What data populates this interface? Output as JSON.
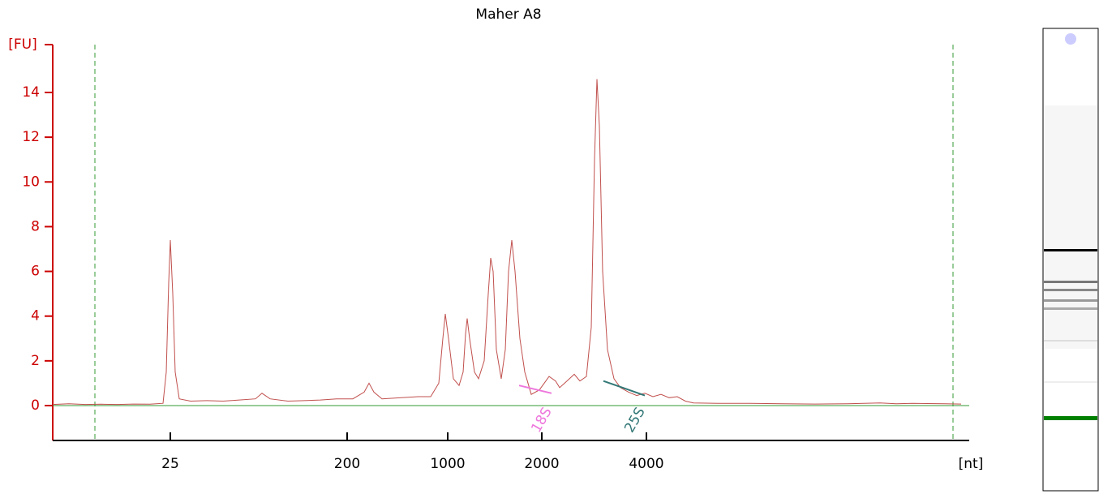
{
  "chart_data": {
    "type": "line",
    "title": "Maher A8",
    "ylabel": "[FU]",
    "xlabel": "[nt]",
    "xlim": [
      19,
      75.5
    ],
    "ylim": [
      -1.56,
      16.14
    ],
    "xticks": [
      {
        "value": 26.25,
        "label": "25"
      },
      {
        "value": 37.15,
        "label": "200"
      },
      {
        "value": 43.35,
        "label": "1000"
      },
      {
        "value": 49.15,
        "label": "2000"
      },
      {
        "value": 55.6,
        "label": "4000"
      }
    ],
    "yticks": [
      0,
      2,
      4,
      6,
      8,
      10,
      12,
      14
    ],
    "markers": [
      21.6,
      74.5
    ],
    "annotations": [
      {
        "text": "18S",
        "color": "#ee77dd",
        "x": [
          47.75,
          49.75
        ],
        "y": [
          0.9,
          0.55
        ]
      },
      {
        "text": "25S",
        "color": "#337777",
        "x": [
          52.95,
          55.5
        ],
        "y": [
          1.1,
          0.45
        ]
      }
    ],
    "series": [
      {
        "name": "Maher A8",
        "color": "#c0504d",
        "x": [
          19,
          20,
          21,
          22,
          23,
          24,
          25,
          25.8,
          26.0,
          26.15,
          26.25,
          26.4,
          26.55,
          26.8,
          27.5,
          28.5,
          29.5,
          30.5,
          31.5,
          31.9,
          32.4,
          33.5,
          34.5,
          35.5,
          36.5,
          37.5,
          38.2,
          38.5,
          38.8,
          39.3,
          40.5,
          41.5,
          42.3,
          42.8,
          43.05,
          43.2,
          43.4,
          43.7,
          44.05,
          44.3,
          44.45,
          44.55,
          44.7,
          45.0,
          45.25,
          45.6,
          45.85,
          46.0,
          46.15,
          46.35,
          46.65,
          46.9,
          47.1,
          47.3,
          47.5,
          47.8,
          48.1,
          48.5,
          49.0,
          49.6,
          50.0,
          50.25,
          50.7,
          51.15,
          51.5,
          51.9,
          52.2,
          52.4,
          52.55,
          52.7,
          52.9,
          53.2,
          53.6,
          54.0,
          54.5,
          55.0,
          55.5,
          56.0,
          56.5,
          57.0,
          57.5,
          58.0,
          58.5,
          60,
          62,
          64,
          66,
          68,
          70,
          71,
          72,
          74,
          75
        ],
        "values": [
          0.05,
          0.08,
          0.05,
          0.06,
          0.05,
          0.07,
          0.06,
          0.1,
          1.5,
          5.5,
          7.4,
          5.0,
          1.5,
          0.3,
          0.2,
          0.22,
          0.2,
          0.25,
          0.3,
          0.55,
          0.3,
          0.2,
          0.22,
          0.25,
          0.3,
          0.3,
          0.6,
          1.0,
          0.6,
          0.3,
          0.35,
          0.4,
          0.4,
          1.0,
          3.0,
          4.1,
          3.0,
          1.2,
          0.9,
          1.5,
          3.2,
          3.9,
          3.0,
          1.5,
          1.2,
          2.0,
          5.0,
          6.6,
          6.0,
          2.5,
          1.2,
          2.5,
          6.0,
          7.4,
          6.0,
          3.0,
          1.5,
          0.5,
          0.7,
          1.3,
          1.1,
          0.8,
          1.1,
          1.4,
          1.1,
          1.3,
          3.5,
          11.0,
          14.6,
          12.5,
          6.0,
          2.5,
          1.2,
          0.8,
          0.6,
          0.45,
          0.55,
          0.4,
          0.5,
          0.35,
          0.4,
          0.2,
          0.12,
          0.1,
          0.1,
          0.08,
          0.07,
          0.08,
          0.12,
          0.08,
          0.1,
          0.08,
          0.07
        ]
      }
    ]
  }
}
